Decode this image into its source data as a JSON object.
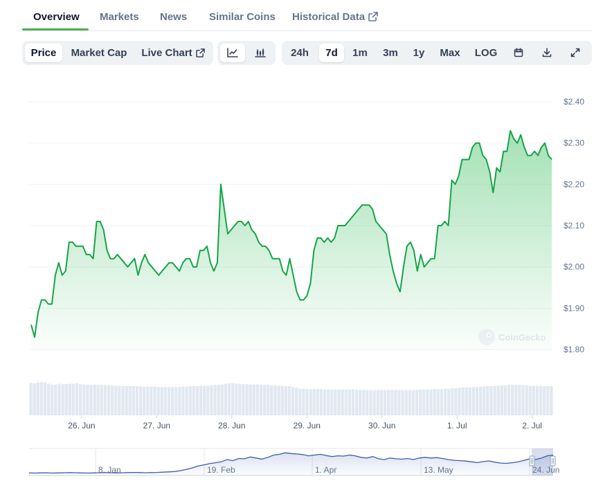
{
  "tabs": [
    {
      "label": "Overview",
      "active": true
    },
    {
      "label": "Markets",
      "active": false
    },
    {
      "label": "News",
      "active": false
    },
    {
      "label": "Similar Coins",
      "active": false
    },
    {
      "label": "Historical Data",
      "active": false,
      "external": true
    }
  ],
  "toolbar": {
    "metric_buttons": [
      {
        "label": "Price",
        "selected": true
      },
      {
        "label": "Market Cap",
        "selected": false
      },
      {
        "label": "Live Chart",
        "selected": false,
        "external": true
      }
    ],
    "chart_style": {
      "line_selected": true
    },
    "ranges": [
      {
        "label": "24h",
        "selected": false
      },
      {
        "label": "7d",
        "selected": true
      },
      {
        "label": "1m",
        "selected": false
      },
      {
        "label": "3m",
        "selected": false
      },
      {
        "label": "1y",
        "selected": false
      },
      {
        "label": "Max",
        "selected": false
      },
      {
        "label": "LOG",
        "selected": false
      }
    ],
    "icons": [
      "calendar-icon",
      "download-icon",
      "fullscreen-icon"
    ]
  },
  "watermark": "CoinGecko",
  "colors": {
    "line": "#16a34a",
    "area_top": "#86d79b",
    "volume": "#e2e8f0",
    "navigator": "#3b5bab",
    "tab_underline": "#4caf50"
  },
  "chart_data": {
    "type": "area",
    "xlabel": "",
    "ylabel": "",
    "ylim": [
      1.8,
      2.4
    ],
    "y_ticks": [
      "$2.40",
      "$2.30",
      "$2.20",
      "$2.10",
      "$2.00",
      "$1.90",
      "$1.80"
    ],
    "x_ticks": [
      "26. Jun",
      "27. Jun",
      "28. Jun",
      "29. Jun",
      "30. Jun",
      "1. Jul",
      "2. Jul"
    ],
    "x_start_day": 25.3,
    "x_end_day": 32.28,
    "series": [
      {
        "values": [
          1.86,
          1.83,
          1.89,
          1.92,
          1.92,
          1.91,
          1.91,
          1.98,
          2.01,
          1.98,
          1.99,
          2.06,
          2.06,
          2.05,
          2.05,
          2.05,
          2.03,
          2.03,
          2.02,
          2.11,
          2.11,
          2.09,
          2.04,
          2.02,
          2.02,
          2.03,
          2.02,
          2.01,
          2.0,
          2.01,
          2.02,
          1.98,
          2.01,
          2.03,
          2.01,
          2.0,
          1.99,
          1.98,
          1.99,
          2.0,
          2.01,
          2.01,
          2.0,
          1.99,
          2.01,
          2.02,
          2.02,
          2.0,
          2.0,
          2.04,
          2.04,
          2.05,
          2.01,
          1.99,
          2.01,
          2.2,
          2.14,
          2.08,
          2.09,
          2.1,
          2.11,
          2.11,
          2.1,
          2.11,
          2.09,
          2.08,
          2.06,
          2.05,
          2.05,
          2.04,
          2.02,
          2.02,
          2.02,
          1.99,
          1.98,
          2.02,
          1.98,
          1.94,
          1.92,
          1.92,
          1.93,
          1.96,
          2.04,
          2.07,
          2.07,
          2.06,
          2.07,
          2.06,
          2.07,
          2.1,
          2.1,
          2.1,
          2.11,
          2.12,
          2.13,
          2.14,
          2.15,
          2.15,
          2.15,
          2.14,
          2.11,
          2.1,
          2.09,
          2.08,
          2.03,
          1.99,
          1.96,
          1.94,
          2.0,
          2.05,
          2.06,
          2.04,
          1.99,
          2.03,
          2.0,
          2.01,
          2.02,
          2.02,
          2.1,
          2.1,
          2.11,
          2.1,
          2.21,
          2.2,
          2.22,
          2.26,
          2.26,
          2.26,
          2.29,
          2.3,
          2.3,
          2.27,
          2.26,
          2.23,
          2.18,
          2.24,
          2.23,
          2.28,
          2.28,
          2.33,
          2.31,
          2.3,
          2.32,
          2.29,
          2.27,
          2.27,
          2.28,
          2.27,
          2.29,
          2.3,
          2.27,
          2.26
        ]
      }
    ],
    "volume": [
      78,
      77,
      79,
      80,
      79,
      76,
      74,
      74,
      76,
      75,
      75,
      76,
      76,
      77,
      75,
      74,
      74,
      73,
      74,
      73,
      73,
      72,
      72,
      72,
      71,
      71,
      70,
      70,
      70,
      70,
      70,
      70,
      69,
      69,
      69,
      69,
      68,
      68,
      68,
      68,
      68,
      68,
      68,
      69,
      69,
      70,
      70,
      70,
      71,
      71,
      71,
      72,
      73,
      73,
      74,
      76,
      77,
      77,
      76,
      76,
      75,
      75,
      74,
      74,
      74,
      73,
      73,
      73,
      72,
      72,
      71,
      71,
      70,
      70,
      68,
      66,
      64,
      64,
      63,
      63,
      63,
      63,
      63,
      62,
      62,
      62,
      62,
      62,
      62,
      62,
      62,
      62,
      61,
      61,
      61,
      61,
      61,
      61,
      61,
      61,
      61,
      61,
      61,
      61,
      61,
      61,
      61,
      61,
      61,
      61,
      62,
      62,
      62,
      62,
      63,
      63,
      63,
      64,
      64,
      65,
      65,
      66,
      67,
      67,
      67,
      68,
      68,
      69,
      69,
      70,
      70,
      71,
      71,
      72,
      72,
      73,
      73,
      73,
      73,
      72,
      72,
      71,
      71,
      71,
      71,
      70,
      70,
      70
    ],
    "navigator": {
      "ticks": [
        "8. Jan",
        "19. Feb",
        "1. Apr",
        "13. May",
        "24. Jun"
      ],
      "values": [
        1.07,
        1.06,
        1.07,
        1.08,
        1.06,
        1.07,
        1.08,
        1.09,
        1.08,
        1.07,
        1.06,
        1.07,
        1.08,
        1.09,
        1.08,
        1.07,
        1.08,
        1.09,
        1.1,
        1.09,
        1.08,
        1.09,
        1.1,
        1.12,
        1.14,
        1.16,
        1.22,
        1.3,
        1.4,
        1.52,
        1.6,
        1.68,
        1.74,
        1.8,
        1.95,
        1.88,
        2.02,
        2.0,
        2.12,
        2.05,
        1.98,
        2.1,
        2.25,
        2.3,
        2.4,
        2.35,
        2.32,
        2.28,
        2.2,
        2.25,
        2.3,
        2.22,
        2.15,
        2.2,
        2.18,
        2.25,
        2.2,
        2.1,
        2.05,
        2.15,
        2.0,
        1.95,
        2.05,
        2.0,
        1.98,
        2.02,
        1.95,
        2.05,
        2.1,
        2.05,
        2.08,
        2.02,
        1.95,
        1.9,
        1.88,
        1.85,
        1.8,
        1.75,
        1.82,
        1.86,
        1.78,
        1.72,
        1.7,
        1.74,
        1.8,
        1.9,
        2.0,
        1.95,
        2.05,
        2.2,
        2.25
      ]
    }
  }
}
